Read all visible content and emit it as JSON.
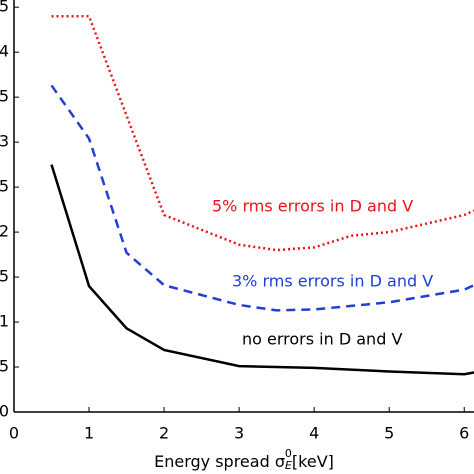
{
  "chart_data": {
    "type": "line",
    "xlabel": {
      "text": "Energy spread σ",
      "sub": "E",
      "sup": "0",
      "unit": "[keV]"
    },
    "xlim": [
      0,
      6.13
    ],
    "ylim": [
      0,
      4.58
    ],
    "xticks": [
      0,
      1,
      2,
      3,
      4,
      5,
      6
    ],
    "yticks": [
      0,
      {
        "value": 0.5,
        "label": "5"
      },
      1,
      {
        "value": 1.5,
        "label": "5"
      },
      2,
      {
        "value": 2.5,
        "label": "5"
      },
      3,
      {
        "value": 3.5,
        "label": "5"
      },
      4,
      {
        "value": 4.5,
        "label": "5"
      }
    ],
    "series": [
      {
        "name": "5% rms errors in D and V",
        "color": "#e8141b",
        "style": "dotted",
        "x": [
          0.5,
          1,
          2,
          3,
          3.5,
          4,
          4.5,
          5,
          6,
          6.13
        ],
        "values": [
          4.4,
          4.4,
          2.19,
          1.86,
          1.8,
          1.83,
          1.96,
          2.0,
          2.19,
          2.24
        ]
      },
      {
        "name": "3% rms errors in D and V",
        "color": "#1f3fd6",
        "style": "dashed",
        "x": [
          0.5,
          1,
          1.5,
          2,
          3,
          3.5,
          4,
          5,
          6,
          6.13
        ],
        "values": [
          3.63,
          3.04,
          1.77,
          1.41,
          1.19,
          1.13,
          1.14,
          1.22,
          1.36,
          1.41
        ]
      },
      {
        "name": "no errors in D and V",
        "color": "#000000",
        "style": "solid",
        "x": [
          0.5,
          1,
          1.5,
          2,
          3,
          4,
          5,
          6,
          6.13
        ],
        "values": [
          2.75,
          1.4,
          0.93,
          0.69,
          0.51,
          0.49,
          0.45,
          0.42,
          0.44
        ]
      }
    ]
  }
}
